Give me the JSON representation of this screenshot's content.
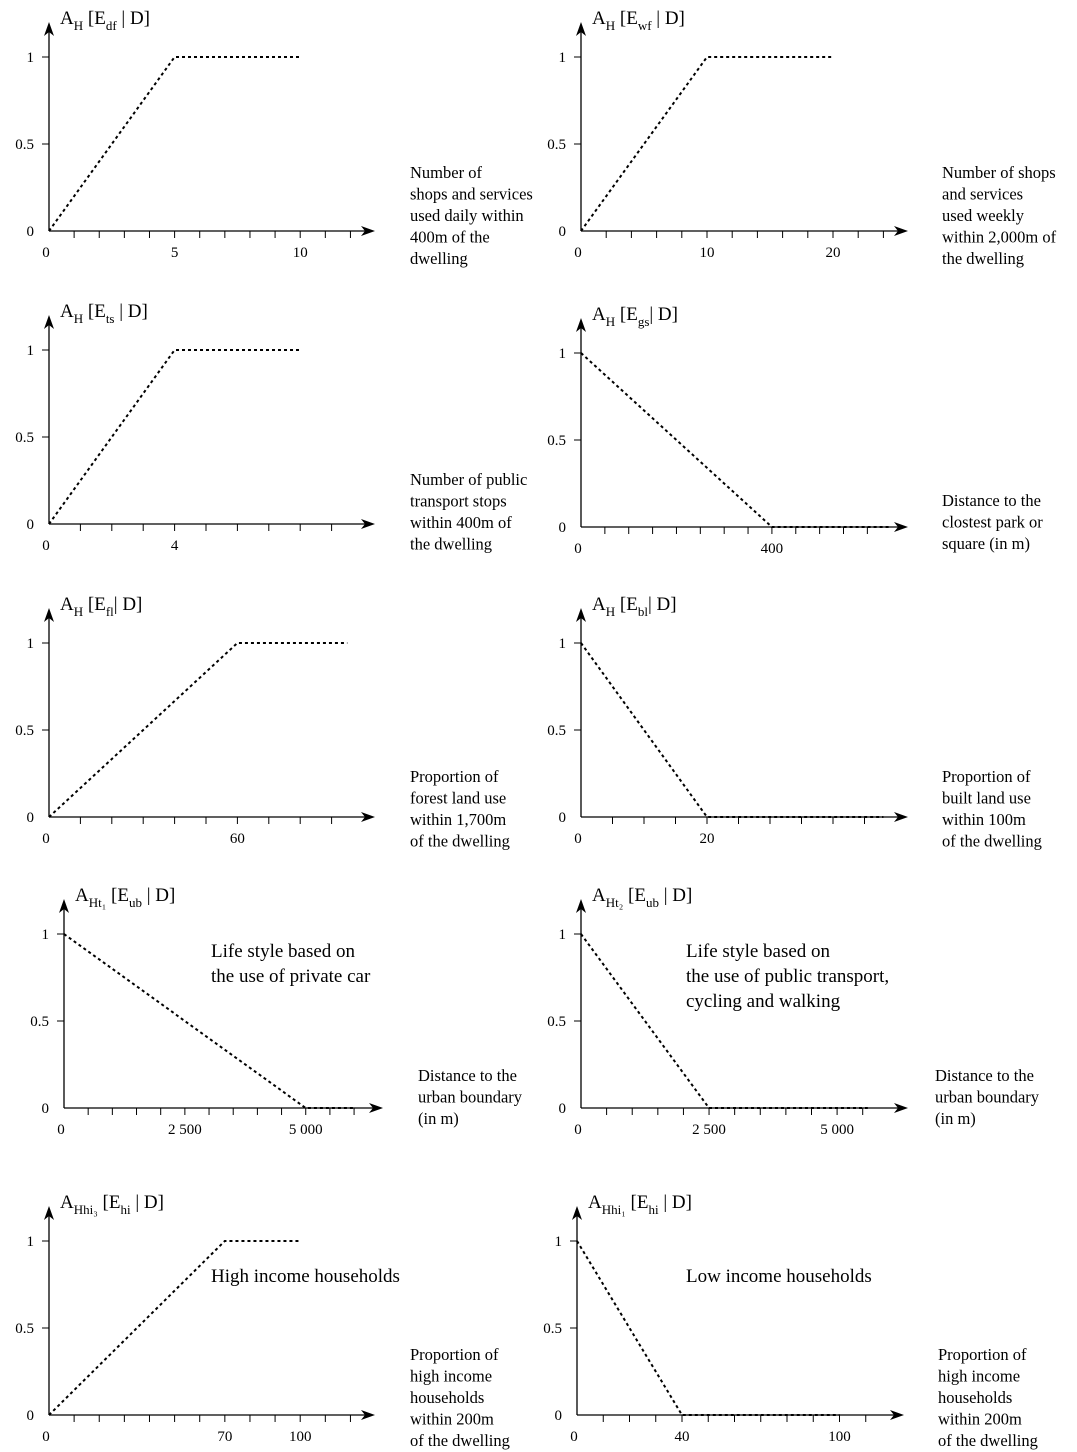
{
  "chart_data": [
    {
      "type": "line",
      "ylabel": {
        "base": "A",
        "base_sub": "H",
        "bracket": "[E",
        "bracket_sub": "df",
        "tail": " | D]"
      },
      "xlabel_lines": [
        "Number of",
        "shops and services",
        "used daily within",
        "400m of the",
        "dwelling"
      ],
      "x_tick_labels": [
        {
          "v": 0,
          "t": "0"
        },
        {
          "v": 5,
          "t": "5"
        },
        {
          "v": 10,
          "t": "10"
        }
      ],
      "y_tick_labels": [
        {
          "v": 0,
          "t": "0"
        },
        {
          "v": 0.5,
          "t": "0.5"
        },
        {
          "v": 1,
          "t": "1"
        }
      ],
      "xlim": [
        0,
        12.5
      ],
      "ylim": [
        0,
        1
      ],
      "minor_ticks": [
        1,
        2,
        3,
        4,
        5,
        6,
        7,
        8,
        9,
        10,
        11,
        12
      ],
      "series": [
        {
          "x": [
            0,
            5,
            10
          ],
          "y": [
            0,
            1,
            1
          ]
        }
      ]
    },
    {
      "type": "line",
      "ylabel": {
        "base": "A",
        "base_sub": "H",
        "bracket": "[E",
        "bracket_sub": "wf",
        "tail": " | D]"
      },
      "xlabel_lines": [
        "Number of shops",
        "and services",
        "used weekly",
        "within 2,000m of",
        "the dwelling"
      ],
      "x_tick_labels": [
        {
          "v": 0,
          "t": "0"
        },
        {
          "v": 10,
          "t": "10"
        },
        {
          "v": 20,
          "t": "20"
        }
      ],
      "y_tick_labels": [
        {
          "v": 0,
          "t": "0"
        },
        {
          "v": 0.5,
          "t": "0.5"
        },
        {
          "v": 1,
          "t": "1"
        }
      ],
      "xlim": [
        0,
        25
      ],
      "ylim": [
        0,
        1
      ],
      "minor_ticks": [
        2,
        4,
        6,
        8,
        10,
        12,
        14,
        16,
        18,
        20,
        22,
        24
      ],
      "series": [
        {
          "x": [
            0,
            10,
            20
          ],
          "y": [
            0,
            1,
            1
          ]
        }
      ]
    },
    {
      "type": "line",
      "ylabel": {
        "base": "A",
        "base_sub": "H",
        "bracket": "[E",
        "bracket_sub": "ts",
        "tail": " | D]"
      },
      "xlabel_lines": [
        "Number of public",
        "transport stops",
        "within 400m of",
        "the dwelling"
      ],
      "x_tick_labels": [
        {
          "v": 0,
          "t": "0"
        },
        {
          "v": 4,
          "t": "4"
        }
      ],
      "y_tick_labels": [
        {
          "v": 0,
          "t": "0"
        },
        {
          "v": 0.5,
          "t": "0.5"
        },
        {
          "v": 1,
          "t": "1"
        }
      ],
      "xlim": [
        0,
        10
      ],
      "ylim": [
        0,
        1
      ],
      "minor_ticks": [
        1,
        2,
        3,
        4,
        5,
        6,
        7,
        8,
        9
      ],
      "series": [
        {
          "x": [
            0,
            4,
            8
          ],
          "y": [
            0,
            1,
            1
          ]
        }
      ]
    },
    {
      "type": "line",
      "ylabel": {
        "base": "A",
        "base_sub": "H",
        "bracket": "[E",
        "bracket_sub": "gs",
        "tail": "| D]"
      },
      "xlabel_lines": [
        "Distance to the",
        "clostest park or",
        "square (in m)"
      ],
      "x_tick_labels": [
        {
          "v": 0,
          "t": "0"
        },
        {
          "v": 400,
          "t": "400"
        }
      ],
      "y_tick_labels": [
        {
          "v": 0,
          "t": "0"
        },
        {
          "v": 0.5,
          "t": "0.5"
        },
        {
          "v": 1,
          "t": "1"
        }
      ],
      "xlim": [
        0,
        660
      ],
      "ylim": [
        0,
        1
      ],
      "minor_ticks": [
        50,
        100,
        150,
        200,
        250,
        300,
        350,
        400,
        450,
        500,
        550,
        600
      ],
      "series": [
        {
          "x": [
            0,
            400,
            650
          ],
          "y": [
            1,
            0,
            0
          ]
        }
      ]
    },
    {
      "type": "line",
      "ylabel": {
        "base": "A",
        "base_sub": "H",
        "bracket": "[E",
        "bracket_sub": "fl",
        "tail": "| D]"
      },
      "xlabel_lines": [
        "Proportion of",
        "forest land use",
        "within 1,700m",
        "of the dwelling"
      ],
      "x_tick_labels": [
        {
          "v": 0,
          "t": "0"
        },
        {
          "v": 60,
          "t": "60"
        }
      ],
      "y_tick_labels": [
        {
          "v": 0,
          "t": "0"
        },
        {
          "v": 0.5,
          "t": "0.5"
        },
        {
          "v": 1,
          "t": "1"
        }
      ],
      "xlim": [
        0,
        100
      ],
      "ylim": [
        0,
        1
      ],
      "minor_ticks": [
        10,
        20,
        30,
        40,
        50,
        60,
        70,
        80,
        90
      ],
      "series": [
        {
          "x": [
            0,
            60,
            95
          ],
          "y": [
            0,
            1,
            1
          ]
        }
      ]
    },
    {
      "type": "line",
      "ylabel": {
        "base": "A",
        "base_sub": "H",
        "bracket": "[E",
        "bracket_sub": "bl",
        "tail": "| D]"
      },
      "xlabel_lines": [
        "Proportion of",
        "built land use",
        "within 100m",
        "of the dwelling"
      ],
      "x_tick_labels": [
        {
          "v": 0,
          "t": "0"
        },
        {
          "v": 20,
          "t": "20"
        }
      ],
      "y_tick_labels": [
        {
          "v": 0,
          "t": "0"
        },
        {
          "v": 0.5,
          "t": "0.5"
        },
        {
          "v": 1,
          "t": "1"
        }
      ],
      "xlim": [
        0,
        50
      ],
      "ylim": [
        0,
        1
      ],
      "minor_ticks": [
        5,
        10,
        15,
        20,
        25,
        30,
        35,
        40,
        45
      ],
      "series": [
        {
          "x": [
            0,
            20,
            48
          ],
          "y": [
            1,
            0,
            0
          ]
        }
      ]
    },
    {
      "type": "line",
      "ylabel": {
        "base": "A",
        "base_sub": "Ht₁",
        "bracket": "[E",
        "bracket_sub": "ub",
        "tail": " | D]"
      },
      "annotation_lines": [
        "Life style based on",
        "the use of private car"
      ],
      "xlabel_lines": [
        "Distance to the",
        "urban boundary",
        "(in m)"
      ],
      "x_tick_labels": [
        {
          "v": 0,
          "t": "0"
        },
        {
          "v": 2500,
          "t": "2 500"
        },
        {
          "v": 5000,
          "t": "5 000"
        }
      ],
      "y_tick_labels": [
        {
          "v": 0,
          "t": "0"
        },
        {
          "v": 0.5,
          "t": "0.5"
        },
        {
          "v": 1,
          "t": "1"
        }
      ],
      "xlim": [
        0,
        6350
      ],
      "ylim": [
        0,
        1
      ],
      "minor_ticks": [
        500,
        1000,
        1500,
        2000,
        2500,
        3000,
        3500,
        4000,
        4500,
        5000,
        5500,
        6000
      ],
      "series": [
        {
          "x": [
            0,
            5000,
            6000
          ],
          "y": [
            1,
            0,
            0
          ]
        }
      ]
    },
    {
      "type": "line",
      "ylabel": {
        "base": "A",
        "base_sub": "Ht₂",
        "bracket": "[E",
        "bracket_sub": "ub",
        "tail": " | D]"
      },
      "annotation_lines": [
        "Life style based on",
        "the use of public transport,",
        "cycling and walking"
      ],
      "xlabel_lines": [
        "Distance to the",
        "urban boundary",
        "(in m)"
      ],
      "x_tick_labels": [
        {
          "v": 0,
          "t": "0"
        },
        {
          "v": 2500,
          "t": "2 500"
        },
        {
          "v": 5000,
          "t": "5 000"
        }
      ],
      "y_tick_labels": [
        {
          "v": 0,
          "t": "0"
        },
        {
          "v": 0.5,
          "t": "0.5"
        },
        {
          "v": 1,
          "t": "1"
        }
      ],
      "xlim": [
        0,
        6150
      ],
      "ylim": [
        0,
        1
      ],
      "minor_ticks": [
        500,
        1000,
        1500,
        2000,
        2500,
        3000,
        3500,
        4000,
        4500,
        5000,
        5500
      ],
      "series": [
        {
          "x": [
            0,
            2500,
            5600
          ],
          "y": [
            1,
            0,
            0
          ]
        }
      ]
    },
    {
      "type": "line",
      "ylabel": {
        "base": "A",
        "base_sub": "Hhi₃",
        "bracket": "[E",
        "bracket_sub": "hi",
        "tail": " | D]"
      },
      "annotation_lines": [
        "High income households"
      ],
      "xlabel_lines": [
        "Proportion of",
        "high income",
        "households",
        "within 200m",
        "of the dwelling"
      ],
      "x_tick_labels": [
        {
          "v": 0,
          "t": "0"
        },
        {
          "v": 70,
          "t": "70"
        },
        {
          "v": 100,
          "t": "100"
        }
      ],
      "y_tick_labels": [
        {
          "v": 0,
          "t": "0"
        },
        {
          "v": 0.5,
          "t": "0.5"
        },
        {
          "v": 1,
          "t": "1"
        }
      ],
      "xlim": [
        0,
        125
      ],
      "ylim": [
        0,
        1
      ],
      "minor_ticks": [
        10,
        20,
        30,
        40,
        50,
        60,
        70,
        80,
        90,
        100,
        110,
        120
      ],
      "series": [
        {
          "x": [
            0,
            70,
            100
          ],
          "y": [
            0,
            1,
            1
          ]
        }
      ]
    },
    {
      "type": "line",
      "ylabel": {
        "base": "A",
        "base_sub": "Hhi₁",
        "bracket": "[E",
        "bracket_sub": "hi",
        "tail": " | D]"
      },
      "annotation_lines": [
        "Low income households"
      ],
      "xlabel_lines": [
        "Proportion of",
        "high income",
        "households",
        "within 200m",
        "of the dwelling"
      ],
      "x_tick_labels": [
        {
          "v": 0,
          "t": "0"
        },
        {
          "v": 40,
          "t": "40"
        },
        {
          "v": 100,
          "t": "100"
        }
      ],
      "y_tick_labels": [
        {
          "v": 0,
          "t": "0"
        },
        {
          "v": 0.5,
          "t": "0.5"
        },
        {
          "v": 1,
          "t": "1"
        }
      ],
      "xlim": [
        0,
        120
      ],
      "ylim": [
        0,
        1
      ],
      "minor_ticks": [
        10,
        20,
        30,
        40,
        50,
        60,
        70,
        80,
        90,
        100,
        110
      ],
      "series": [
        {
          "x": [
            0,
            40,
            100
          ],
          "y": [
            1,
            0,
            0
          ]
        }
      ]
    }
  ]
}
